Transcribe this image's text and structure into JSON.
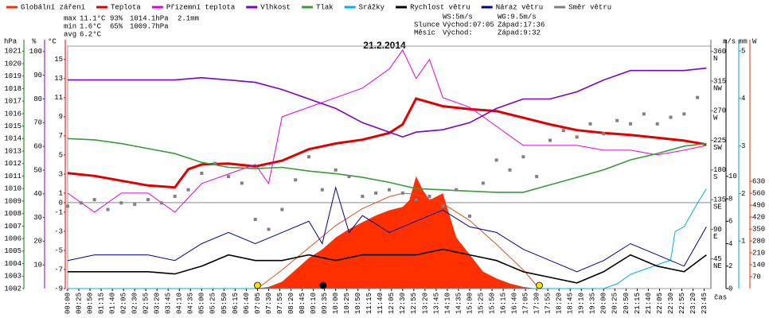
{
  "chart_data": {
    "type": "line",
    "title": "21.2.2014",
    "xlabel": "čas",
    "xlim": [
      0,
      1440
    ],
    "xticks": [
      {
        "value": 0,
        "label": "00:00"
      },
      {
        "value": 25,
        "label": "00:25"
      },
      {
        "value": 50,
        "label": "00:50"
      },
      {
        "value": 75,
        "label": "01:15"
      },
      {
        "value": 100,
        "label": "01:40"
      },
      {
        "value": 125,
        "label": "02:05"
      },
      {
        "value": 150,
        "label": "02:30"
      },
      {
        "value": 175,
        "label": "02:55"
      },
      {
        "value": 200,
        "label": "03:20"
      },
      {
        "value": 225,
        "label": "03:45"
      },
      {
        "value": 250,
        "label": "04:10"
      },
      {
        "value": 275,
        "label": "04:35"
      },
      {
        "value": 300,
        "label": "05:00"
      },
      {
        "value": 325,
        "label": "05:25"
      },
      {
        "value": 350,
        "label": "05:50"
      },
      {
        "value": 375,
        "label": "06:15"
      },
      {
        "value": 400,
        "label": "06:40"
      },
      {
        "value": 425,
        "label": "07:05"
      },
      {
        "value": 450,
        "label": "07:30"
      },
      {
        "value": 475,
        "label": "07:55"
      },
      {
        "value": 500,
        "label": "08:20"
      },
      {
        "value": 525,
        "label": "08:45"
      },
      {
        "value": 550,
        "label": "09:10"
      },
      {
        "value": 575,
        "label": "09:35"
      },
      {
        "value": 600,
        "label": "10:00"
      },
      {
        "value": 625,
        "label": "10:25"
      },
      {
        "value": 650,
        "label": "10:50"
      },
      {
        "value": 675,
        "label": "11:15"
      },
      {
        "value": 700,
        "label": "11:40"
      },
      {
        "value": 725,
        "label": "12:05"
      },
      {
        "value": 750,
        "label": "12:30"
      },
      {
        "value": 775,
        "label": "12:55"
      },
      {
        "value": 800,
        "label": "13:20"
      },
      {
        "value": 825,
        "label": "13:45"
      },
      {
        "value": 850,
        "label": "14:10"
      },
      {
        "value": 875,
        "label": "14:35"
      },
      {
        "value": 900,
        "label": "15:00"
      },
      {
        "value": 925,
        "label": "15:25"
      },
      {
        "value": 950,
        "label": "15:50"
      },
      {
        "value": 975,
        "label": "16:15"
      },
      {
        "value": 1000,
        "label": "16:40"
      },
      {
        "value": 1025,
        "label": "17:05"
      },
      {
        "value": 1050,
        "label": "17:30"
      },
      {
        "value": 1075,
        "label": "17:55"
      },
      {
        "value": 1100,
        "label": "18:20"
      },
      {
        "value": 1125,
        "label": "18:45"
      },
      {
        "value": 1150,
        "label": "19:10"
      },
      {
        "value": 1175,
        "label": "19:35"
      },
      {
        "value": 1200,
        "label": "20:00"
      },
      {
        "value": 1225,
        "label": "20:25"
      },
      {
        "value": 1250,
        "label": "20:50"
      },
      {
        "value": 1275,
        "label": "21:15"
      },
      {
        "value": 1300,
        "label": "21:40"
      },
      {
        "value": 1325,
        "label": "22:05"
      },
      {
        "value": 1350,
        "label": "22:30"
      },
      {
        "value": 1375,
        "label": "22:55"
      },
      {
        "value": 1400,
        "label": "23:20"
      },
      {
        "value": 1425,
        "label": "23:45"
      }
    ],
    "axes": {
      "hpa": {
        "unit": "hPa",
        "color": "#008000",
        "lim": [
          1002,
          1021.4
        ],
        "ticks": [
          1002,
          1003,
          1004,
          1005,
          1006,
          1007,
          1008,
          1009,
          1010,
          1011,
          1012,
          1013,
          1014,
          1015,
          1016,
          1017,
          1018,
          1019,
          1020,
          1021
        ]
      },
      "pct": {
        "unit": "%",
        "color": "#8000c0",
        "lim": [
          0,
          102.3
        ],
        "ticks": [
          10,
          20,
          30,
          40,
          50,
          60,
          70,
          80,
          90,
          100
        ]
      },
      "temp": {
        "unit": "°C",
        "color": "#e00000",
        "lim": [
          -9,
          16.4
        ],
        "ticks": [
          -9,
          -7,
          -5,
          -3,
          -1,
          0,
          1,
          3,
          5,
          7,
          9,
          11,
          13,
          15
        ],
        "refline": 0
      },
      "dir": {
        "color": "#606060",
        "lim": [
          0,
          368
        ],
        "ticks": [
          45,
          90,
          135,
          180,
          225,
          270,
          315,
          360
        ],
        "compass": [
          "NE",
          "E",
          "SE",
          "S",
          "SW",
          "W",
          "NW",
          "N"
        ]
      },
      "ms": {
        "unit": "m/s",
        "color": "#000000",
        "lim": [
          0,
          21.6
        ],
        "ticks": [
          0,
          2,
          4,
          6,
          8,
          10
        ]
      },
      "mm": {
        "unit": "mm",
        "color": "#00a0e0",
        "lim": [
          0,
          5.1
        ],
        "ticks": [
          1,
          2,
          3,
          4,
          5
        ]
      },
      "w": {
        "unit": "W",
        "color": "#e03000",
        "lim": [
          0,
          1425
        ],
        "ticks": [
          70,
          140,
          210,
          280,
          350,
          420,
          490,
          560,
          630
        ]
      }
    },
    "series": [
      {
        "name": "Globální záření",
        "color": "#ff3000",
        "style": "area",
        "axis": "w",
        "x": [
          420,
          450,
          480,
          510,
          540,
          570,
          600,
          630,
          660,
          690,
          720,
          750,
          765,
          780,
          795,
          810,
          840,
          870,
          900,
          930,
          960,
          990,
          1020,
          1050
        ],
        "values": [
          0,
          10,
          40,
          110,
          180,
          230,
          300,
          350,
          390,
          430,
          460,
          480,
          520,
          660,
          580,
          520,
          560,
          300,
          200,
          100,
          60,
          30,
          10,
          0
        ]
      },
      {
        "color": "#e05020",
        "style": "line",
        "axis": "w",
        "x": [
          425,
          480,
          540,
          600,
          660,
          720,
          750,
          780,
          840,
          900,
          960,
          1020,
          1056
        ],
        "values": [
          0,
          110,
          240,
          370,
          470,
          540,
          560,
          555,
          500,
          400,
          260,
          110,
          0
        ]
      },
      {
        "name": "Teplota",
        "color": "#e00000",
        "style": "thick",
        "axis": "temp",
        "x": [
          0,
          60,
          120,
          180,
          240,
          270,
          300,
          360,
          420,
          480,
          540,
          600,
          660,
          720,
          750,
          780,
          840,
          900,
          960,
          1020,
          1080,
          1140,
          1200,
          1260,
          1320,
          1380,
          1430
        ],
        "values": [
          3.1,
          2.8,
          2.3,
          1.8,
          1.6,
          3.5,
          4.0,
          4.1,
          3.8,
          4.4,
          5.6,
          6.2,
          6.6,
          7.3,
          8.2,
          10.9,
          10.1,
          9.8,
          9.6,
          8.9,
          8.2,
          7.6,
          7.3,
          7.1,
          6.8,
          6.5,
          6.1
        ]
      },
      {
        "name": "Přízemní teplota",
        "color": "#e000e0",
        "style": "line",
        "axis": "temp",
        "x": [
          0,
          60,
          120,
          180,
          240,
          300,
          360,
          420,
          450,
          480,
          540,
          600,
          660,
          720,
          750,
          780,
          810,
          840,
          900,
          960,
          1020,
          1080,
          1140,
          1200,
          1260,
          1320,
          1380,
          1430
        ],
        "values": [
          1,
          -1,
          1,
          1,
          -1,
          2,
          3,
          4,
          2,
          9,
          10,
          11,
          12,
          14,
          16,
          13,
          15,
          11,
          10,
          8,
          6,
          6,
          6,
          5.5,
          5.5,
          5,
          5.5,
          6
        ]
      },
      {
        "name": "Vlhkost",
        "color": "#8000c0",
        "style": "line2",
        "axis": "pct",
        "x": [
          0,
          60,
          120,
          180,
          240,
          300,
          360,
          420,
          480,
          540,
          600,
          660,
          720,
          750,
          780,
          840,
          900,
          960,
          1020,
          1080,
          1140,
          1200,
          1260,
          1320,
          1380,
          1430
        ],
        "values": [
          88,
          88,
          88,
          88,
          88,
          89,
          88,
          87,
          84,
          80,
          76,
          70,
          66,
          64,
          66,
          67,
          70,
          76,
          80,
          80,
          83,
          88,
          92,
          92,
          92,
          93
        ]
      },
      {
        "name": "Tlak",
        "color": "#3a9a3a",
        "style": "line2",
        "axis": "hpa",
        "x": [
          0,
          60,
          120,
          180,
          240,
          300,
          360,
          420,
          480,
          540,
          600,
          660,
          720,
          780,
          840,
          900,
          960,
          1020,
          1080,
          1140,
          1200,
          1260,
          1320,
          1380,
          1430
        ],
        "values": [
          1014.0,
          1013.9,
          1013.6,
          1013.2,
          1012.8,
          1012.1,
          1011.7,
          1011.6,
          1011.7,
          1011.4,
          1011.2,
          1010.9,
          1010.5,
          1010.0,
          1009.9,
          1009.8,
          1009.7,
          1009.7,
          1010.3,
          1010.9,
          1011.5,
          1012.3,
          1012.8,
          1013.4,
          1013.6
        ]
      },
      {
        "name": "Srážky",
        "color": "#00b0e0",
        "style": "line",
        "axis": "mm",
        "x": [
          0,
          1200,
          1230,
          1260,
          1290,
          1320,
          1350,
          1360,
          1380,
          1410,
          1430
        ],
        "values": [
          0,
          0,
          0.1,
          0.3,
          0.4,
          0.5,
          0.6,
          1.2,
          1.3,
          1.8,
          2.1
        ]
      },
      {
        "name": "Rychlost větru",
        "color": "#000000",
        "style": "line2",
        "axis": "ms",
        "x": [
          0,
          60,
          120,
          180,
          240,
          300,
          360,
          420,
          480,
          540,
          600,
          660,
          720,
          780,
          840,
          900,
          960,
          1020,
          1080,
          1140,
          1200,
          1260,
          1320,
          1380,
          1430
        ],
        "values": [
          1.5,
          1.5,
          1.5,
          1.5,
          1.3,
          2,
          3,
          2.5,
          2.5,
          3,
          2.5,
          3,
          3,
          3,
          3.5,
          3,
          2.5,
          1.5,
          1,
          0.5,
          1.5,
          3,
          2,
          1.5,
          3
        ]
      },
      {
        "name": "Náraz větru",
        "color": "#000090",
        "style": "line",
        "axis": "ms",
        "x": [
          0,
          60,
          120,
          180,
          240,
          300,
          360,
          420,
          480,
          540,
          570,
          600,
          630,
          660,
          720,
          780,
          840,
          900,
          960,
          1020,
          1080,
          1140,
          1200,
          1260,
          1320,
          1380,
          1430
        ],
        "values": [
          2.5,
          3,
          3,
          3,
          2.5,
          4,
          5,
          4,
          5,
          6,
          4,
          9,
          5,
          6.5,
          5,
          6,
          7,
          5.5,
          5,
          3.5,
          2.5,
          1.5,
          2.5,
          4,
          3,
          2,
          5.5
        ]
      },
      {
        "name": "Směr větru",
        "color": "#808080",
        "style": "points",
        "axis": "dir",
        "x": [
          0,
          30,
          60,
          90,
          120,
          150,
          180,
          210,
          240,
          270,
          300,
          330,
          360,
          390,
          420,
          450,
          480,
          510,
          540,
          570,
          600,
          630,
          660,
          690,
          720,
          750,
          780,
          810,
          840,
          870,
          900,
          930,
          960,
          990,
          1020,
          1050,
          1080,
          1110,
          1140,
          1170,
          1200,
          1230,
          1260,
          1290,
          1320,
          1350,
          1380,
          1410
        ],
        "values": [
          125,
          130,
          135,
          120,
          130,
          128,
          135,
          130,
          140,
          150,
          175,
          190,
          170,
          160,
          105,
          90,
          120,
          165,
          200,
          150,
          180,
          170,
          140,
          145,
          150,
          145,
          135,
          140,
          125,
          150,
          110,
          160,
          195,
          180,
          200,
          170,
          225,
          240,
          230,
          250,
          235,
          255,
          250,
          265,
          250,
          260,
          265,
          290
        ]
      }
    ],
    "stats": [
      {
        "label": "max",
        "items": [
          "11.1°C",
          "93%",
          "1014.1hPa",
          "2.1mm"
        ]
      },
      {
        "label": "min",
        "items": [
          "1.6°C",
          "65%",
          "1009.7hPa"
        ]
      },
      {
        "label": "avg",
        "items": [
          "6.2°C"
        ]
      }
    ],
    "info": {
      "ws": "WS:5m/s",
      "wg": "WG:9.5m/s",
      "sun": {
        "label": "Slunce",
        "rise_label": "Východ:",
        "rise": "07:05",
        "set_label": "Západ:",
        "set": "17:36"
      },
      "moon": {
        "label": "Měsíc",
        "rise_label": "Východ:",
        "set_label": "Západ:",
        "set": "9:32"
      }
    }
  }
}
